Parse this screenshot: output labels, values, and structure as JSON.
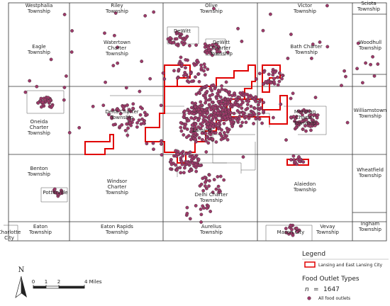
{
  "townships": [
    {
      "lines": [
        "Westphalia",
        "Township"
      ]
    },
    {
      "lines": [
        "Riley",
        "Township"
      ]
    },
    {
      "lines": [
        "Olive",
        "Township"
      ]
    },
    {
      "lines": [
        "Victor",
        "Township"
      ]
    },
    {
      "lines": [
        "Sciota",
        "Township"
      ]
    },
    {
      "lines": [
        "Eagle",
        "Township"
      ]
    },
    {
      "lines": [
        "Watertown",
        "Charter",
        "Township"
      ]
    },
    {
      "lines": [
        "DeWitt"
      ]
    },
    {
      "lines": [
        "DeWitt",
        "Charter",
        "Township"
      ]
    },
    {
      "lines": [
        "Bath Charter",
        "Township"
      ]
    },
    {
      "lines": [
        "Woodhull",
        "Township"
      ]
    },
    {
      "lines": [
        "Oneida",
        "Charter",
        "Township"
      ]
    },
    {
      "lines": [
        "Delta Charter",
        "Township"
      ]
    },
    {
      "lines": [
        "Lansing"
      ]
    },
    {
      "lines": [
        "Meridian",
        "Charter",
        "Township"
      ]
    },
    {
      "lines": [
        "Williamstown",
        "Township"
      ]
    },
    {
      "lines": [
        "Benton",
        "Township"
      ]
    },
    {
      "lines": [
        "Potterville"
      ]
    },
    {
      "lines": [
        "Windsor",
        "Charter",
        "Township"
      ]
    },
    {
      "lines": [
        "Delhi Charter",
        "Township"
      ]
    },
    {
      "lines": [
        "Alaiedon",
        "Township"
      ]
    },
    {
      "lines": [
        "Wheatfield",
        "Township"
      ]
    },
    {
      "lines": [
        "Ingham",
        "Township"
      ]
    },
    {
      "lines": [
        "Charlotte",
        "City"
      ]
    },
    {
      "lines": [
        "Eaton",
        "Township"
      ]
    },
    {
      "lines": [
        "Eaton Rapids",
        "Township"
      ]
    },
    {
      "lines": [
        "Aurelius",
        "Township"
      ]
    },
    {
      "lines": [
        "Mason City"
      ]
    },
    {
      "lines": [
        "Vevay",
        "Township"
      ]
    }
  ],
  "legend": {
    "title": "Legend",
    "boundary_label": "Lansing and East Lansing City",
    "types_title": "Food Outlet Types",
    "n_label": "n",
    "n_equals": "=",
    "n_value": 1647,
    "item_label": "All food outlets"
  },
  "scale": {
    "north": "N",
    "ticks": [
      0,
      1,
      2,
      {
        "value": 4,
        "label": "4 Miles"
      }
    ]
  }
}
